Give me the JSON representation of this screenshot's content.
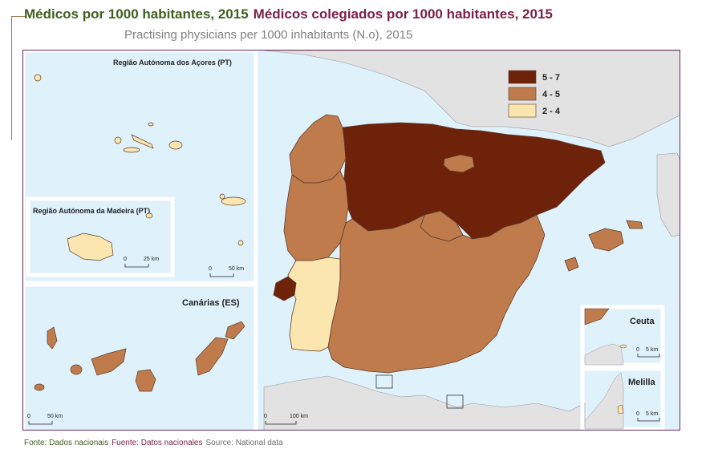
{
  "title": {
    "pt": "Médicos por 1000 habitantes, 2015",
    "es": "Médicos colegiados por 1000 habitantes, 2015"
  },
  "subtitle": "Practising physicians per 1000 inhabitants (N.o), 2015",
  "legend": {
    "items": [
      {
        "label": "5 - 7",
        "color": "#6e2209"
      },
      {
        "label": "4 - 5",
        "color": "#c07b4c"
      },
      {
        "label": "2 - 4",
        "color": "#fbe6b0"
      }
    ]
  },
  "insets": {
    "azores": {
      "label": "Região Autónoma dos Açores (PT)",
      "scale_zero": "0",
      "scale_label": "50 km"
    },
    "madeira": {
      "label": "Região Autónoma da Madeira (PT)",
      "scale_zero": "0",
      "scale_label": "25 km"
    },
    "canarias": {
      "label": "Canárias (ES)",
      "scale_zero": "0",
      "scale_label": "50 km"
    },
    "ceuta": {
      "label": "Ceuta",
      "scale_zero": "0",
      "scale_label": "5 km"
    },
    "melilla": {
      "label": "Melilla",
      "scale_zero": "0",
      "scale_label": "5 km"
    }
  },
  "main_scale": {
    "zero": "0",
    "label": "100 km"
  },
  "colors": {
    "sea": "#dff2fb",
    "land_other": "#e2e2e2",
    "border": "#6b2c5a",
    "frame": "#ffffff"
  },
  "source": {
    "pt": "Fonte: Dados nacionais",
    "es": "Fuente: Datos nacionales",
    "en": "Source: National data"
  }
}
